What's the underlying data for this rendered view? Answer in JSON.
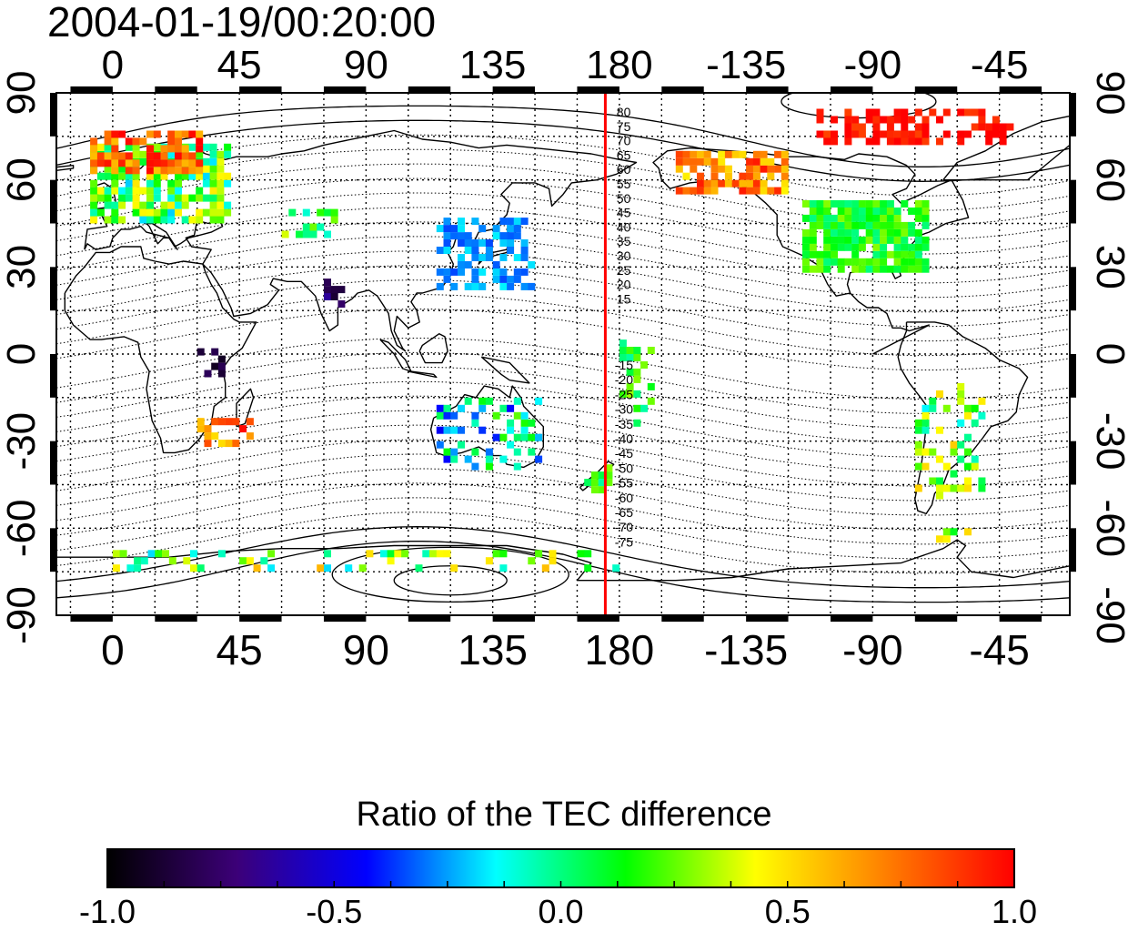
{
  "header": {
    "timestamp": "2004-01-19/00:20:00"
  },
  "map": {
    "projection": "cylindrical",
    "lon_ticks_labels": [
      "0",
      "45",
      "90",
      "135",
      "180",
      "-135",
      "-90",
      "-45"
    ],
    "lat_ticks_labels": [
      "90",
      "60",
      "30",
      "0",
      "-30",
      "-60",
      "-90"
    ],
    "meridian_line_lon": 175,
    "meridian_line_color": "#ff0000",
    "contour_labels_north": [
      "80",
      "75",
      "70",
      "65",
      "60",
      "55",
      "50",
      "45",
      "40",
      "35",
      "30",
      "25",
      "20",
      "15"
    ],
    "contour_labels_south": [
      "-15",
      "-20",
      "-25",
      "-30",
      "-35",
      "-40",
      "-45",
      "-50",
      "-55",
      "-60",
      "-65",
      "-70",
      "-75"
    ],
    "grid": true
  },
  "colorbar": {
    "title": "Ratio of the TEC difference",
    "min": -1.0,
    "max": 1.0,
    "tick_labels": [
      "-1.0",
      "-0.5",
      "0.0",
      "0.5",
      "1.0"
    ],
    "colors": [
      "#000000",
      "#3c0078",
      "#0000ff",
      "#00ffff",
      "#00ff00",
      "#ffff00",
      "#ff8000",
      "#ff0000"
    ]
  }
}
